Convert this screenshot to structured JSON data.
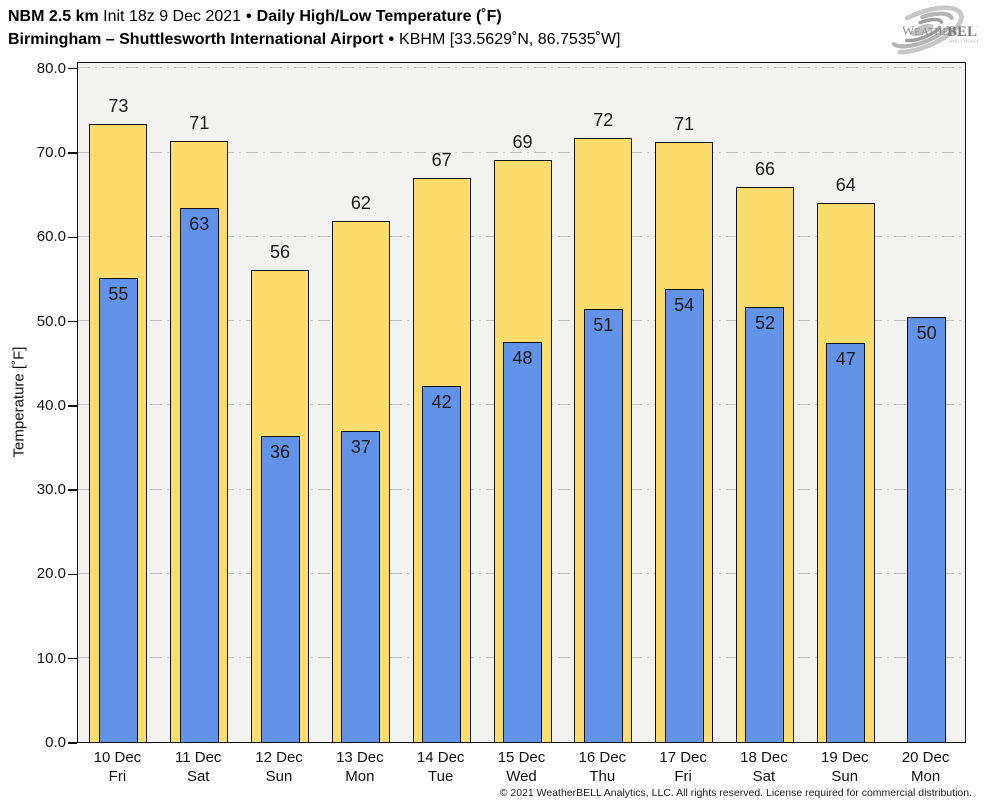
{
  "header": {
    "line1": {
      "bold1": "NBM 2.5 km",
      "regular": "Init 18z 9 Dec 2021",
      "sep": "•",
      "bold2": "Daily High/Low Temperature (˚F)"
    },
    "line2": {
      "bold": "Birmingham – Shuttlesworth International Airport",
      "sep": "•",
      "regular": "KBHM [33.5629˚N, 86.7535˚W]"
    }
  },
  "logo": {
    "text_weather": "Weather",
    "text_bell": "BELL",
    "text_sub": "Analytics LLC"
  },
  "footer": {
    "copyright": "© 2021 WeatherBELL Analytics, LLC. All rights reserved. License required for commercial distribution."
  },
  "chart_data": {
    "type": "bar",
    "title": "NBM 2.5 km Init 18z 9 Dec 2021 • Daily High/Low Temperature (˚F)",
    "subtitle": "Birmingham – Shuttlesworth International Airport • KBHM [33.5629˚N, 86.7535˚W]",
    "ylabel": "Temperature [˚F]",
    "ylim": [
      0,
      80.8
    ],
    "yticks": [
      "0.0",
      "10.0",
      "20.0",
      "30.0",
      "40.0",
      "50.0",
      "60.0",
      "70.0",
      "80.0"
    ],
    "ytick_values": [
      0,
      10,
      20,
      30,
      40,
      50,
      60,
      70,
      80
    ],
    "grid": "horizontal dash-dot",
    "legend": "none",
    "categories": [
      {
        "date": "10 Dec",
        "day": "Fri"
      },
      {
        "date": "11 Dec",
        "day": "Sat"
      },
      {
        "date": "12 Dec",
        "day": "Sun"
      },
      {
        "date": "13 Dec",
        "day": "Mon"
      },
      {
        "date": "14 Dec",
        "day": "Tue"
      },
      {
        "date": "15 Dec",
        "day": "Wed"
      },
      {
        "date": "16 Dec",
        "day": "Thu"
      },
      {
        "date": "17 Dec",
        "day": "Fri"
      },
      {
        "date": "18 Dec",
        "day": "Sat"
      },
      {
        "date": "19 Dec",
        "day": "Sun"
      },
      {
        "date": "20 Dec",
        "day": "Mon"
      }
    ],
    "series": [
      {
        "name": "High",
        "color": "#FBDC6C",
        "border_color": "#111111",
        "values": [
          73,
          71,
          56,
          62,
          67,
          69,
          72,
          71,
          66,
          64,
          null
        ],
        "bar_tops": [
          73.3,
          71.3,
          56.0,
          61.8,
          66.9,
          69.1,
          71.7,
          71.2,
          65.8,
          63.9,
          null
        ]
      },
      {
        "name": "Low",
        "color": "#6193E8",
        "border_color": "#111111",
        "values": [
          55,
          63,
          36,
          37,
          42,
          48,
          51,
          54,
          52,
          47,
          50
        ],
        "bar_tops": [
          55.1,
          63.4,
          36.3,
          36.9,
          42.2,
          47.5,
          51.4,
          53.7,
          51.6,
          47.4,
          50.4
        ]
      }
    ],
    "colors": {
      "plot_background": "#F2F2F1",
      "gridline": "#C3C3C3",
      "axis": "#111111"
    }
  }
}
